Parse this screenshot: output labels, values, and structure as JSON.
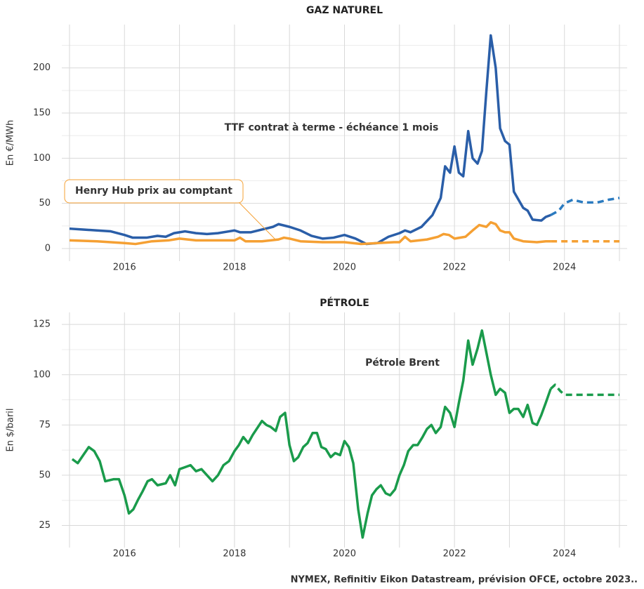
{
  "chart_data": [
    {
      "type": "line",
      "title": "GAZ NATUREL",
      "ylabel": "En €/MWh",
      "xlim": [
        2014.86,
        2025.14
      ],
      "xticks": [
        2016,
        2018,
        2020,
        2022,
        2024
      ],
      "xgrid_minor": [
        2015,
        2017,
        2019,
        2021,
        2023,
        2025
      ],
      "ylim": [
        -14,
        248
      ],
      "yticks": [
        0,
        50,
        100,
        150,
        200
      ],
      "ygrid_minor": [
        25,
        75,
        125,
        175,
        225
      ],
      "grid": true,
      "series": [
        {
          "name": "TTF contrat à terme - échéance 1 mois",
          "color": "#2a5ea8",
          "dashed": false,
          "x": [
            2015.0,
            2015.25,
            2015.5,
            2015.75,
            2016.0,
            2016.15,
            2016.4,
            2016.6,
            2016.75,
            2016.9,
            2017.0,
            2017.1,
            2017.3,
            2017.5,
            2017.7,
            2017.9,
            2018.0,
            2018.1,
            2018.3,
            2018.5,
            2018.7,
            2018.8,
            2019.0,
            2019.2,
            2019.4,
            2019.6,
            2019.8,
            2020.0,
            2020.2,
            2020.4,
            2020.6,
            2020.8,
            2021.0,
            2021.1,
            2021.2,
            2021.4,
            2021.6,
            2021.75,
            2021.83,
            2021.92,
            2022.0,
            2022.08,
            2022.16,
            2022.25,
            2022.33,
            2022.42,
            2022.5,
            2022.58,
            2022.66,
            2022.75,
            2022.83,
            2022.92,
            2023.0,
            2023.08,
            2023.25,
            2023.33,
            2023.42,
            2023.58,
            2023.66,
            2023.75
          ],
          "values": [
            22,
            21,
            20,
            19,
            15,
            12,
            12,
            14,
            13,
            17,
            18,
            19,
            17,
            16,
            17,
            19,
            20,
            18,
            18,
            21,
            24,
            27,
            24,
            20,
            14,
            11,
            12,
            15,
            11,
            5,
            6,
            13,
            17,
            20,
            18,
            24,
            37,
            56,
            91,
            84,
            113,
            84,
            80,
            130,
            100,
            94,
            108,
            174,
            236,
            200,
            133,
            119,
            115,
            63,
            45,
            42,
            32,
            31,
            35,
            37
          ]
        },
        {
          "color": "#2b7bc0",
          "dashed": true,
          "x": [
            2023.75,
            2023.9,
            2024.0,
            2024.15,
            2024.35,
            2024.6,
            2024.8,
            2025.0
          ],
          "values": [
            37,
            42,
            50,
            54,
            51,
            51,
            54,
            56
          ]
        },
        {
          "name": "Henry Hub prix au comptant",
          "color": "#f5a033",
          "dashed": false,
          "x": [
            2015.0,
            2015.5,
            2016.0,
            2016.2,
            2016.5,
            2016.8,
            2017.0,
            2017.3,
            2017.6,
            2018.0,
            2018.1,
            2018.2,
            2018.5,
            2018.8,
            2018.9,
            2019.0,
            2019.2,
            2019.6,
            2020.0,
            2020.3,
            2020.6,
            2020.9,
            2021.0,
            2021.1,
            2021.2,
            2021.5,
            2021.7,
            2021.8,
            2021.9,
            2022.0,
            2022.2,
            2022.35,
            2022.45,
            2022.58,
            2022.66,
            2022.75,
            2022.83,
            2022.92,
            2023.0,
            2023.08,
            2023.25,
            2023.5,
            2023.66,
            2023.75
          ],
          "values": [
            9,
            8,
            6,
            5,
            8,
            9,
            11,
            9,
            9,
            9,
            12,
            8,
            8,
            10,
            12,
            11,
            8,
            7,
            7,
            5,
            6,
            7,
            7,
            13,
            8,
            10,
            13,
            16,
            15,
            11,
            13,
            21,
            26,
            24,
            29,
            27,
            20,
            18,
            18,
            11,
            8,
            7,
            8,
            8
          ]
        },
        {
          "color": "#f5a033",
          "dashed": true,
          "x": [
            2023.75,
            2025.0
          ],
          "values": [
            8,
            8
          ]
        }
      ]
    },
    {
      "type": "line",
      "title": "PÉTROLE",
      "ylabel": "En $/baril",
      "xlim": [
        2014.86,
        2025.14
      ],
      "xticks": [
        2016,
        2018,
        2020,
        2022,
        2024
      ],
      "xgrid_minor": [
        2015,
        2017,
        2019,
        2021,
        2023,
        2025
      ],
      "ylim": [
        14,
        131
      ],
      "yticks": [
        25,
        50,
        75,
        100,
        125
      ],
      "ygrid_minor": [
        37.5,
        62.5,
        87.5,
        112.5
      ],
      "grid": true,
      "series": [
        {
          "name": "Pétrole Brent",
          "color": "#1a9b4b",
          "dashed": false,
          "x": [
            2015.05,
            2015.15,
            2015.25,
            2015.35,
            2015.45,
            2015.55,
            2015.65,
            2015.8,
            2015.9,
            2016.0,
            2016.08,
            2016.16,
            2016.25,
            2016.33,
            2016.42,
            2016.5,
            2016.6,
            2016.75,
            2016.83,
            2016.92,
            2017.0,
            2017.1,
            2017.2,
            2017.3,
            2017.4,
            2017.5,
            2017.6,
            2017.7,
            2017.8,
            2017.9,
            2018.0,
            2018.08,
            2018.16,
            2018.25,
            2018.33,
            2018.5,
            2018.58,
            2018.66,
            2018.75,
            2018.83,
            2018.92,
            2019.0,
            2019.08,
            2019.16,
            2019.25,
            2019.33,
            2019.42,
            2019.5,
            2019.58,
            2019.66,
            2019.75,
            2019.83,
            2019.92,
            2020.0,
            2020.08,
            2020.16,
            2020.25,
            2020.33,
            2020.42,
            2020.5,
            2020.58,
            2020.66,
            2020.75,
            2020.83,
            2020.92,
            2021.0,
            2021.08,
            2021.16,
            2021.25,
            2021.33,
            2021.42,
            2021.5,
            2021.58,
            2021.66,
            2021.75,
            2021.83,
            2021.92,
            2022.0,
            2022.08,
            2022.16,
            2022.25,
            2022.33,
            2022.42,
            2022.5,
            2022.58,
            2022.66,
            2022.75,
            2022.83,
            2022.92,
            2023.0,
            2023.08,
            2023.16,
            2023.25,
            2023.33,
            2023.42,
            2023.5,
            2023.58,
            2023.66,
            2023.75
          ],
          "values": [
            58,
            56,
            60,
            64,
            62,
            57,
            47,
            48,
            48,
            40,
            31,
            33,
            38,
            42,
            47,
            48,
            45,
            46,
            50,
            45,
            53,
            54,
            55,
            52,
            53,
            50,
            47,
            50,
            55,
            57,
            62,
            65,
            69,
            66,
            70,
            77,
            75,
            74,
            72,
            79,
            81,
            65,
            57,
            59,
            64,
            66,
            71,
            71,
            64,
            63,
            59,
            61,
            60,
            67,
            64,
            56,
            33,
            19,
            31,
            40,
            43,
            45,
            41,
            40,
            43,
            50,
            55,
            62,
            65,
            65,
            69,
            73,
            75,
            71,
            74,
            84,
            81,
            74,
            86,
            97,
            117,
            105,
            113,
            122,
            111,
            100,
            90,
            93,
            91,
            81,
            83,
            83,
            79,
            85,
            76,
            75,
            80,
            86,
            93
          ]
        },
        {
          "color": "#1a9b4b",
          "dashed": true,
          "x": [
            2023.75,
            2023.83,
            2023.92,
            2024.0,
            2025.0
          ],
          "values": [
            93,
            95,
            92,
            90,
            90
          ]
        }
      ]
    }
  ],
  "source": "NYMEX, Refinitiv Eikon Datastream, prévision OFCE, octobre 2023.."
}
